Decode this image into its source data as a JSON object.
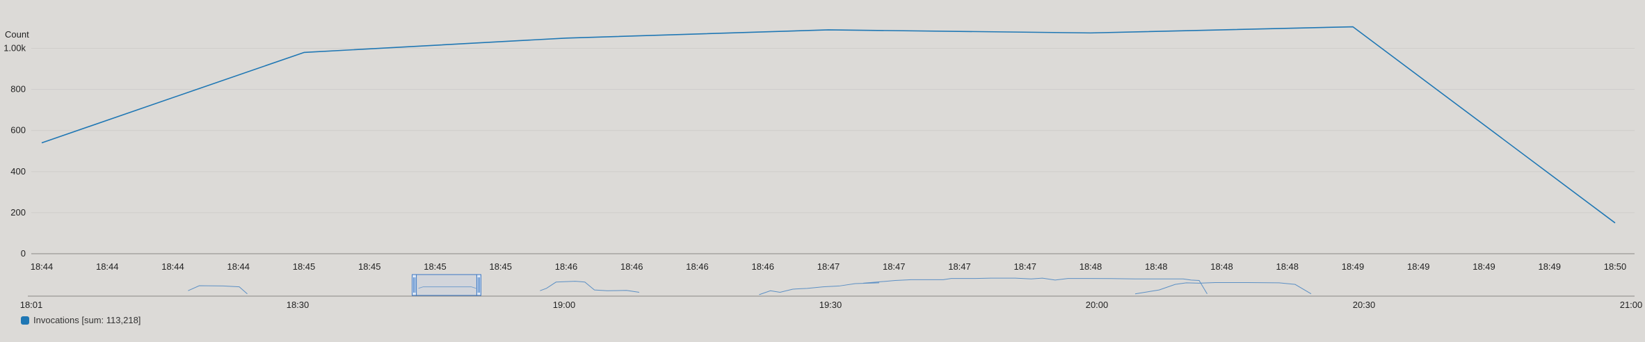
{
  "chart_data": {
    "type": "line",
    "ylabel": "Count",
    "ylim": [
      0,
      1100
    ],
    "y_ticks": [
      {
        "value": 0,
        "label": "0"
      },
      {
        "value": 200,
        "label": "200"
      },
      {
        "value": 400,
        "label": "400"
      },
      {
        "value": 600,
        "label": "600"
      },
      {
        "value": 800,
        "label": "800"
      },
      {
        "value": 1000,
        "label": "1.00k"
      }
    ],
    "x_tick_labels": [
      "18:44",
      "18:44",
      "18:44",
      "18:44",
      "18:45",
      "18:45",
      "18:45",
      "18:45",
      "18:46",
      "18:46",
      "18:46",
      "18:46",
      "18:47",
      "18:47",
      "18:47",
      "18:47",
      "18:48",
      "18:48",
      "18:48",
      "18:48",
      "18:49",
      "18:49",
      "18:49",
      "18:49",
      "18:50"
    ],
    "series": [
      {
        "name": "Invocations",
        "color": "#1f77b4",
        "x": [
          0,
          4,
          8,
          12,
          16,
          20,
          24
        ],
        "values": [
          540,
          980,
          1050,
          1090,
          1075,
          1105,
          150
        ]
      }
    ],
    "grid": true,
    "legend_position": "bottom-left",
    "legend_label": "Invocations [sum: 113,218]",
    "navigator": {
      "x_labels": [
        "18:01",
        "18:30",
        "19:00",
        "19:30",
        "20:00",
        "20:30",
        "21:00"
      ],
      "selection_range": [
        "18:44",
        "18:50"
      ],
      "segments": [
        [
          [
            0.098,
            0.3
          ],
          [
            0.105,
            0.62
          ],
          [
            0.12,
            0.6
          ],
          [
            0.13,
            0.55
          ],
          [
            0.135,
            0.1
          ]
        ],
        [
          [
            0.242,
            0.45
          ],
          [
            0.245,
            0.55
          ],
          [
            0.26,
            0.55
          ],
          [
            0.275,
            0.55
          ],
          [
            0.278,
            0.45
          ]
        ],
        [
          [
            0.318,
            0.3
          ],
          [
            0.322,
            0.45
          ],
          [
            0.328,
            0.85
          ],
          [
            0.34,
            0.9
          ],
          [
            0.346,
            0.85
          ],
          [
            0.352,
            0.35
          ],
          [
            0.36,
            0.3
          ],
          [
            0.372,
            0.32
          ],
          [
            0.38,
            0.2
          ]
        ],
        [
          [
            0.455,
            0.05
          ],
          [
            0.462,
            0.3
          ],
          [
            0.468,
            0.2
          ],
          [
            0.476,
            0.4
          ],
          [
            0.485,
            0.45
          ],
          [
            0.495,
            0.55
          ],
          [
            0.505,
            0.6
          ],
          [
            0.515,
            0.75
          ],
          [
            0.53,
            0.8
          ],
          [
            0.52,
            0.78
          ],
          [
            0.54,
            0.95
          ],
          [
            0.55,
            1.0
          ],
          [
            0.56,
            1.0
          ],
          [
            0.57,
            1.0
          ],
          [
            0.575,
            1.08
          ],
          [
            0.59,
            1.08
          ],
          [
            0.6,
            1.1
          ],
          [
            0.615,
            1.1
          ],
          [
            0.625,
            1.05
          ],
          [
            0.632,
            1.1
          ],
          [
            0.64,
            0.98
          ],
          [
            0.648,
            1.08
          ],
          [
            0.66,
            1.08
          ],
          [
            0.675,
            1.07
          ],
          [
            0.69,
            1.05
          ],
          [
            0.705,
            1.05
          ],
          [
            0.72,
            1.05
          ],
          [
            0.725,
            0.98
          ],
          [
            0.73,
            0.95
          ],
          [
            0.735,
            0.1
          ]
        ],
        [
          [
            0.69,
            0.1
          ],
          [
            0.705,
            0.35
          ],
          [
            0.715,
            0.7
          ],
          [
            0.722,
            0.8
          ],
          [
            0.73,
            0.78
          ],
          [
            0.74,
            0.82
          ],
          [
            0.76,
            0.82
          ],
          [
            0.78,
            0.8
          ],
          [
            0.79,
            0.7
          ],
          [
            0.8,
            0.1
          ]
        ]
      ]
    }
  }
}
